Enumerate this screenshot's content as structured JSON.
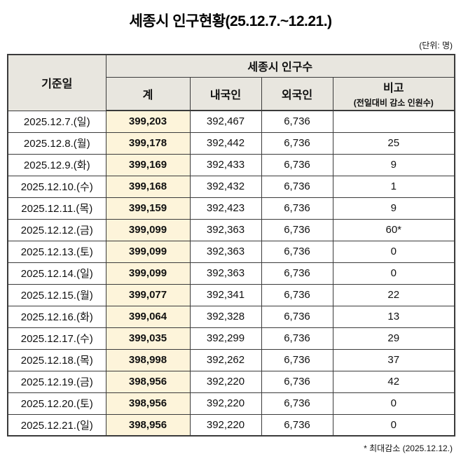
{
  "title": "세종시 인구현황(25.12.7.~12.21.)",
  "unit_note": "(단위: 명)",
  "footnote": "* 최대감소 (2025.12.12.)",
  "table": {
    "header": {
      "date_col": "기준일",
      "population_group": "세종시 인구수",
      "total": "계",
      "korean": "내국인",
      "foreigner": "외국인",
      "remark_line1": "비고",
      "remark_line2": "(전일대비 감소 인원수)"
    },
    "rows": [
      {
        "date": "2025.12.7.(일)",
        "total": "399,203",
        "korean": "392,467",
        "foreigner": "6,736",
        "remark": ""
      },
      {
        "date": "2025.12.8.(월)",
        "total": "399,178",
        "korean": "392,442",
        "foreigner": "6,736",
        "remark": "25"
      },
      {
        "date": "2025.12.9.(화)",
        "total": "399,169",
        "korean": "392,433",
        "foreigner": "6,736",
        "remark": "9"
      },
      {
        "date": "2025.12.10.(수)",
        "total": "399,168",
        "korean": "392,432",
        "foreigner": "6,736",
        "remark": "1"
      },
      {
        "date": "2025.12.11.(목)",
        "total": "399,159",
        "korean": "392,423",
        "foreigner": "6,736",
        "remark": "9"
      },
      {
        "date": "2025.12.12.(금)",
        "total": "399,099",
        "korean": "392,363",
        "foreigner": "6,736",
        "remark": "60*"
      },
      {
        "date": "2025.12.13.(토)",
        "total": "399,099",
        "korean": "392,363",
        "foreigner": "6,736",
        "remark": "0"
      },
      {
        "date": "2025.12.14.(일)",
        "total": "399,099",
        "korean": "392,363",
        "foreigner": "6,736",
        "remark": "0"
      },
      {
        "date": "2025.12.15.(월)",
        "total": "399,077",
        "korean": "392,341",
        "foreigner": "6,736",
        "remark": "22"
      },
      {
        "date": "2025.12.16.(화)",
        "total": "399,064",
        "korean": "392,328",
        "foreigner": "6,736",
        "remark": "13"
      },
      {
        "date": "2025.12.17.(수)",
        "total": "399,035",
        "korean": "392,299",
        "foreigner": "6,736",
        "remark": "29"
      },
      {
        "date": "2025.12.18.(목)",
        "total": "398,998",
        "korean": "392,262",
        "foreigner": "6,736",
        "remark": "37"
      },
      {
        "date": "2025.12.19.(금)",
        "total": "398,956",
        "korean": "392,220",
        "foreigner": "6,736",
        "remark": "42"
      },
      {
        "date": "2025.12.20.(토)",
        "total": "398,956",
        "korean": "392,220",
        "foreigner": "6,736",
        "remark": "0"
      },
      {
        "date": "2025.12.21.(일)",
        "total": "398,956",
        "korean": "392,220",
        "foreigner": "6,736",
        "remark": "0"
      }
    ]
  },
  "colors": {
    "header_bg": "#e8e6df",
    "total_col_bg": "#fdf4da",
    "border": "#3a3a3a"
  }
}
